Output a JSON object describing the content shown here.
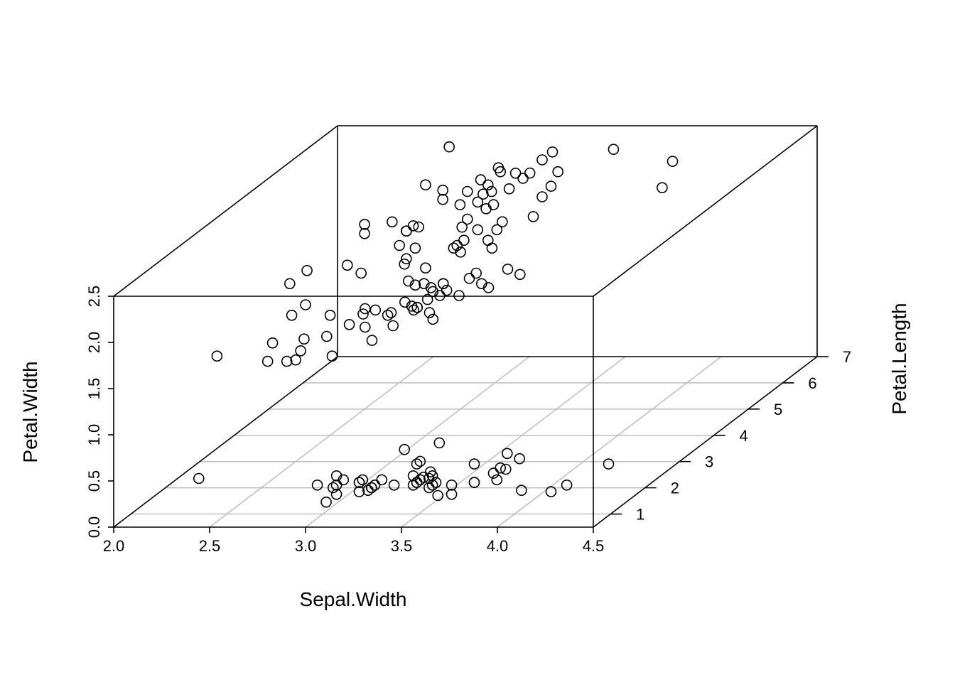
{
  "chart_data": {
    "type": "scatter3d",
    "x_label": "Sepal.Width",
    "y_label": "Petal.Length",
    "z_label": "Petal.Width",
    "x_range": [
      2.0,
      4.5
    ],
    "y_range": [
      0.5,
      7
    ],
    "z_range": [
      0.0,
      2.5
    ],
    "x_ticks": [
      2.0,
      2.5,
      3.0,
      3.5,
      4.0,
      4.5
    ],
    "y_ticks": [
      1,
      2,
      3,
      4,
      5,
      6,
      7
    ],
    "z_ticks": [
      0.0,
      0.5,
      1.0,
      1.5,
      2.0,
      2.5
    ],
    "x_tick_labels": [
      "2.0",
      "2.5",
      "3.0",
      "3.5",
      "4.0",
      "4.5"
    ],
    "y_tick_labels": [
      "1",
      "2",
      "3",
      "4",
      "5",
      "6",
      "7"
    ],
    "z_tick_labels": [
      "0.0",
      "0.5",
      "1.0",
      "1.5",
      "2.0",
      "2.5"
    ],
    "grid": true,
    "box": true,
    "marker": "open-circle",
    "color": "#000000",
    "grid_color": "#bebebe",
    "points": [
      [
        3.5,
        1.4,
        0.2
      ],
      [
        3.0,
        1.4,
        0.2
      ],
      [
        3.2,
        1.3,
        0.2
      ],
      [
        3.1,
        1.5,
        0.2
      ],
      [
        3.6,
        1.4,
        0.2
      ],
      [
        3.9,
        1.7,
        0.4
      ],
      [
        3.4,
        1.4,
        0.3
      ],
      [
        3.4,
        1.5,
        0.2
      ],
      [
        2.9,
        1.4,
        0.2
      ],
      [
        3.1,
        1.5,
        0.1
      ],
      [
        3.7,
        1.5,
        0.2
      ],
      [
        3.4,
        1.6,
        0.2
      ],
      [
        3.0,
        1.4,
        0.1
      ],
      [
        3.0,
        1.1,
        0.1
      ],
      [
        4.0,
        1.2,
        0.2
      ],
      [
        4.4,
        1.5,
        0.4
      ],
      [
        3.9,
        1.3,
        0.4
      ],
      [
        3.5,
        1.4,
        0.3
      ],
      [
        3.8,
        1.7,
        0.3
      ],
      [
        3.8,
        1.5,
        0.3
      ],
      [
        3.4,
        1.7,
        0.2
      ],
      [
        3.7,
        1.5,
        0.4
      ],
      [
        3.6,
        1.0,
        0.2
      ],
      [
        3.3,
        1.7,
        0.5
      ],
      [
        3.4,
        1.9,
        0.2
      ],
      [
        3.0,
        1.6,
        0.2
      ],
      [
        3.4,
        1.6,
        0.4
      ],
      [
        3.5,
        1.5,
        0.2
      ],
      [
        3.4,
        1.4,
        0.2
      ],
      [
        3.2,
        1.6,
        0.2
      ],
      [
        3.1,
        1.6,
        0.2
      ],
      [
        3.4,
        1.5,
        0.4
      ],
      [
        4.1,
        1.5,
        0.1
      ],
      [
        4.2,
        1.4,
        0.2
      ],
      [
        3.1,
        1.5,
        0.2
      ],
      [
        3.2,
        1.2,
        0.2
      ],
      [
        3.5,
        1.3,
        0.2
      ],
      [
        3.6,
        1.4,
        0.1
      ],
      [
        3.0,
        1.3,
        0.2
      ],
      [
        3.4,
        1.5,
        0.2
      ],
      [
        3.5,
        1.3,
        0.3
      ],
      [
        2.3,
        1.3,
        0.3
      ],
      [
        3.2,
        1.3,
        0.2
      ],
      [
        3.5,
        1.6,
        0.6
      ],
      [
        3.8,
        1.9,
        0.4
      ],
      [
        3.0,
        1.4,
        0.3
      ],
      [
        3.8,
        1.6,
        0.2
      ],
      [
        3.2,
        1.4,
        0.2
      ],
      [
        3.7,
        1.5,
        0.2
      ],
      [
        3.3,
        1.4,
        0.2
      ],
      [
        3.2,
        4.7,
        1.4
      ],
      [
        3.2,
        4.5,
        1.5
      ],
      [
        3.1,
        4.9,
        1.5
      ],
      [
        2.3,
        4.0,
        1.3
      ],
      [
        2.8,
        4.6,
        1.5
      ],
      [
        2.8,
        4.5,
        1.3
      ],
      [
        3.3,
        4.7,
        1.6
      ],
      [
        2.4,
        3.3,
        1.0
      ],
      [
        2.9,
        4.6,
        1.3
      ],
      [
        2.7,
        3.9,
        1.4
      ],
      [
        2.0,
        3.5,
        1.0
      ],
      [
        3.0,
        4.2,
        1.5
      ],
      [
        2.2,
        4.0,
        1.0
      ],
      [
        2.9,
        4.7,
        1.4
      ],
      [
        2.9,
        3.6,
        1.3
      ],
      [
        3.1,
        4.4,
        1.4
      ],
      [
        3.0,
        4.5,
        1.5
      ],
      [
        2.7,
        4.1,
        1.0
      ],
      [
        2.2,
        4.5,
        1.5
      ],
      [
        2.5,
        3.9,
        1.1
      ],
      [
        3.2,
        4.8,
        1.8
      ],
      [
        2.8,
        4.0,
        1.3
      ],
      [
        2.5,
        4.9,
        1.5
      ],
      [
        2.8,
        4.7,
        1.2
      ],
      [
        2.9,
        4.3,
        1.3
      ],
      [
        3.0,
        4.4,
        1.4
      ],
      [
        2.8,
        4.8,
        1.4
      ],
      [
        3.0,
        5.0,
        1.7
      ],
      [
        2.9,
        4.5,
        1.5
      ],
      [
        2.6,
        3.5,
        1.0
      ],
      [
        2.4,
        3.8,
        1.1
      ],
      [
        2.4,
        3.7,
        1.0
      ],
      [
        2.7,
        3.9,
        1.2
      ],
      [
        2.7,
        5.1,
        1.6
      ],
      [
        3.0,
        4.5,
        1.5
      ],
      [
        3.4,
        4.5,
        1.6
      ],
      [
        3.1,
        4.7,
        1.5
      ],
      [
        2.3,
        4.4,
        1.3
      ],
      [
        3.0,
        4.1,
        1.3
      ],
      [
        2.5,
        4.0,
        1.3
      ],
      [
        2.6,
        4.4,
        1.2
      ],
      [
        3.0,
        4.6,
        1.4
      ],
      [
        2.6,
        4.0,
        1.2
      ],
      [
        2.3,
        3.3,
        1.0
      ],
      [
        2.7,
        4.2,
        1.3
      ],
      [
        3.0,
        4.2,
        1.2
      ],
      [
        2.9,
        4.2,
        1.3
      ],
      [
        2.9,
        4.3,
        1.3
      ],
      [
        2.5,
        3.0,
        1.1
      ],
      [
        2.8,
        4.1,
        1.3
      ],
      [
        3.3,
        6.0,
        2.5
      ],
      [
        2.7,
        5.1,
        1.9
      ],
      [
        3.0,
        5.9,
        2.1
      ],
      [
        2.9,
        5.6,
        1.8
      ],
      [
        3.0,
        5.8,
        2.2
      ],
      [
        3.0,
        6.6,
        2.1
      ],
      [
        2.5,
        4.5,
        1.7
      ],
      [
        2.9,
        6.3,
        1.8
      ],
      [
        2.5,
        5.8,
        1.8
      ],
      [
        3.6,
        6.1,
        2.5
      ],
      [
        3.2,
        5.1,
        2.0
      ],
      [
        2.7,
        5.3,
        1.9
      ],
      [
        3.0,
        5.5,
        2.1
      ],
      [
        2.5,
        5.0,
        2.0
      ],
      [
        2.8,
        5.1,
        2.4
      ],
      [
        3.2,
        5.3,
        2.3
      ],
      [
        3.0,
        5.5,
        1.8
      ],
      [
        3.8,
        6.7,
        2.2
      ],
      [
        2.6,
        6.9,
        2.3
      ],
      [
        2.2,
        5.0,
        1.5
      ],
      [
        3.2,
        5.7,
        2.3
      ],
      [
        2.8,
        4.9,
        2.0
      ],
      [
        2.8,
        6.7,
        2.0
      ],
      [
        2.7,
        4.9,
        1.8
      ],
      [
        3.3,
        5.7,
        2.1
      ],
      [
        3.2,
        6.0,
        1.8
      ],
      [
        2.8,
        4.8,
        1.8
      ],
      [
        3.0,
        4.9,
        1.8
      ],
      [
        2.8,
        5.6,
        2.1
      ],
      [
        3.0,
        5.8,
        1.6
      ],
      [
        2.8,
        6.1,
        1.9
      ],
      [
        3.8,
        6.4,
        2.0
      ],
      [
        2.8,
        5.6,
        2.2
      ],
      [
        2.8,
        5.1,
        1.5
      ],
      [
        2.6,
        5.6,
        1.4
      ],
      [
        3.0,
        6.1,
        2.3
      ],
      [
        3.4,
        5.6,
        2.4
      ],
      [
        3.1,
        5.5,
        1.8
      ],
      [
        3.0,
        4.8,
        1.8
      ],
      [
        3.1,
        5.4,
        2.1
      ],
      [
        3.1,
        5.6,
        2.4
      ],
      [
        3.1,
        5.1,
        2.3
      ],
      [
        2.7,
        5.1,
        1.9
      ],
      [
        3.2,
        5.9,
        2.3
      ],
      [
        3.3,
        5.7,
        2.5
      ],
      [
        3.0,
        5.2,
        2.3
      ],
      [
        2.5,
        5.0,
        1.9
      ],
      [
        3.0,
        5.2,
        2.0
      ],
      [
        3.4,
        5.4,
        2.3
      ],
      [
        3.0,
        5.1,
        1.8
      ]
    ]
  }
}
